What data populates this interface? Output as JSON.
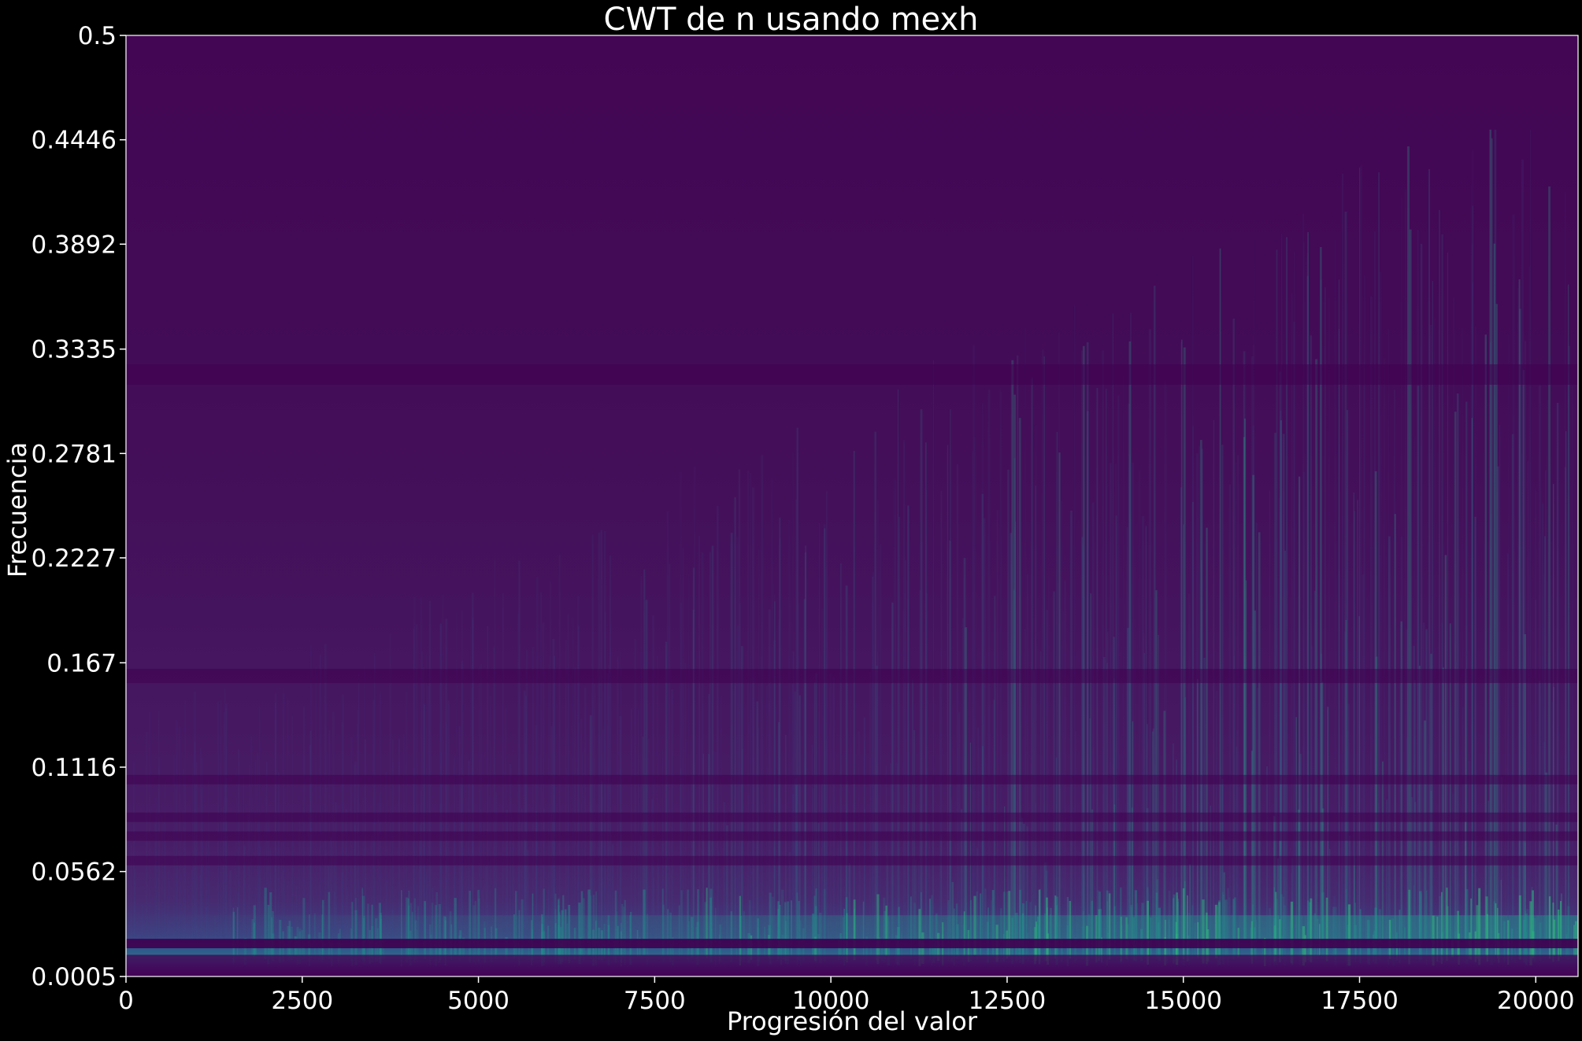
{
  "chart_data": {
    "type": "heatmap",
    "title": "CWT de n usando mexh",
    "xlabel": "Progresión del valor",
    "ylabel": "Frecuencia",
    "xlim": [
      0,
      20600
    ],
    "ylim": [
      0.0005,
      0.5
    ],
    "x_ticks": [
      "0",
      "2500",
      "5000",
      "7500",
      "10000",
      "12500",
      "15000",
      "17500",
      "20000"
    ],
    "x_tick_values": [
      0,
      2500,
      5000,
      7500,
      10000,
      12500,
      15000,
      17500,
      20000
    ],
    "y_ticks": [
      "0.0005",
      "0.0562",
      "0.1116",
      "0.167",
      "0.2227",
      "0.2781",
      "0.3335",
      "0.3892",
      "0.4446",
      "0.5"
    ],
    "y_tick_values": [
      0.0005,
      0.0562,
      0.1116,
      0.167,
      0.2227,
      0.2781,
      0.3335,
      0.3892,
      0.4446,
      0.5
    ],
    "colormap": "viridis",
    "colors": {
      "background": "#000000",
      "low": "#440154",
      "mid": "#3b528b",
      "high": "#21918c",
      "axis": "#ffffff"
    },
    "grid": false,
    "dark_bands_frequency": [
      0.018,
      0.062,
      0.075,
      0.085,
      0.105,
      0.16,
      0.32
    ]
  }
}
